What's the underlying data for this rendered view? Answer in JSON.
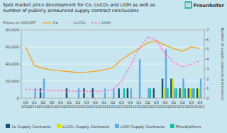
{
  "chart_data": {
    "type": "bar",
    "title": "Spot market price development for Co, Li₂CO₃ and LiOH as well as\nnumber of publicly announced supply contract conclusions",
    "subtitle": "Prices in USD/MT",
    "y2_label": "Number of supply contracts and licences",
    "annotations": [
      "Fraunhofer"
    ],
    "categories": [
      "Q4\n2018",
      "Q1\n2019",
      "Q2\n2019",
      "Q3\n2019",
      "Q4\n2019",
      "Q1\n2020",
      "Q2\n2020",
      "Q3\n2020",
      "Q4\n2020",
      "Q1\n2021",
      "Q2\n2021",
      "Q3\n2021",
      "Q4\n2021",
      "Q1\n2022",
      "Q2\n2022",
      "Q3\n2022",
      "Q4\n2022",
      "Q1\n2023",
      "Q2\n2023",
      "Q3\n2023",
      "Q4\n2023"
    ],
    "series": [
      {
        "name": "Co Supply Contracts",
        "type": "bar",
        "axis": "y2",
        "color": "#1a5276",
        "values": [
          0,
          0,
          1,
          0,
          0,
          1,
          0,
          1,
          1,
          0,
          0,
          1,
          1,
          0,
          0,
          1,
          2,
          2,
          1,
          1,
          1
        ]
      },
      {
        "name": "Li₂CO₃ Supply Contracts",
        "type": "bar",
        "axis": "y2",
        "color": "#d4e600",
        "values": [
          0,
          0,
          0,
          0,
          0,
          0,
          0,
          0,
          0,
          0,
          0,
          0,
          0,
          0,
          0,
          0,
          1,
          2,
          1,
          1,
          1
        ]
      },
      {
        "name": "LiOH Supply Contracts",
        "type": "bar",
        "axis": "y2",
        "color": "#5dade2",
        "values": [
          0,
          1,
          2,
          0,
          0,
          0,
          1,
          0,
          0,
          1,
          1,
          0,
          1,
          4,
          1,
          0,
          5,
          1,
          2,
          1,
          2
        ]
      },
      {
        "name": "Mixed/others",
        "type": "bar",
        "axis": "y2",
        "color": "#1abc9c",
        "values": [
          0,
          0,
          0,
          0,
          0,
          0,
          0,
          0,
          0,
          0,
          0,
          1,
          0,
          0,
          1,
          0,
          1,
          1,
          1,
          1,
          0
        ]
      },
      {
        "name": "Co",
        "type": "line",
        "line_style": "solid",
        "color": "#f5a623",
        "values": [
          60000,
          38000,
          35000,
          33000,
          32000,
          31000,
          30000,
          30500,
          31500,
          33000,
          36000,
          45000,
          52000,
          58000,
          65000,
          67000,
          62000,
          58000,
          55000,
          60000,
          58000
        ]
      },
      {
        "name": "Li₂CO₃",
        "type": "line",
        "line_style": "dashed",
        "color": "#e8c4f0",
        "values": [
          10000,
          8000,
          7500,
          7000,
          6800,
          7000,
          6500,
          6000,
          6200,
          6800,
          9000,
          18000,
          35000,
          55000,
          70000,
          65000,
          50000,
          40000,
          35000,
          38000,
          42000
        ]
      },
      {
        "name": "LiOH",
        "type": "line",
        "line_style": "dashed",
        "color": "#ff69b4",
        "values": [
          10500,
          10000,
          9500,
          9000,
          8800,
          8500,
          8200,
          8000,
          8100,
          8500,
          10000,
          20000,
          38000,
          58000,
          72000,
          68000,
          52000,
          42000,
          37000,
          40000,
          44000
        ]
      }
    ],
    "ylim": [
      0,
      80000
    ],
    "yticks": [
      0,
      {
        "value": 20000,
        "label": "20,000"
      },
      {
        "value": 40000,
        "label": "40,000"
      },
      {
        "value": 60000,
        "label": "60,000"
      },
      {
        "value": 80000,
        "label": "80,000"
      }
    ],
    "y2lim": [
      0,
      7
    ],
    "y2ticks": [
      0,
      1,
      2,
      3,
      4,
      5,
      6,
      7
    ],
    "grid": true
  }
}
